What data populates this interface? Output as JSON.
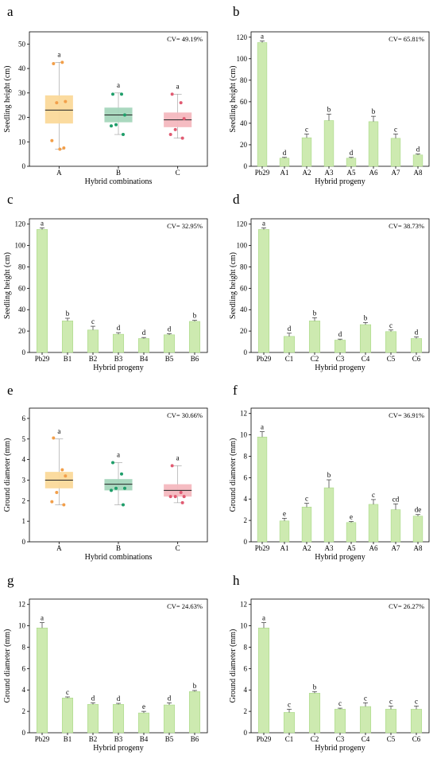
{
  "figure": {
    "colors": {
      "bar_fill": "#cdeab0",
      "bar_stroke": "#a9d886",
      "box_A_fill": "#fbd99a",
      "box_A_point": "#f29f4a",
      "box_B_fill": "#a5d6bc",
      "box_B_point": "#1f9e6a",
      "box_C_fill": "#f4b8bf",
      "box_C_point": "#e15b72",
      "axis": "#000000"
    }
  },
  "chart_data": [
    {
      "panel": "a",
      "type": "box",
      "cv": "CV= 49.19%",
      "xlabel": "Hybrid combinations",
      "ylabel": "Seedling height (cm)",
      "ylim": [
        0,
        55
      ],
      "yticks": [
        0,
        10,
        20,
        30,
        40,
        50
      ],
      "groups": [
        {
          "name": "A",
          "q1": 17.5,
          "median": 23,
          "q3": 29,
          "whisker_low": 7,
          "whisker_high": 42.5,
          "points": [
            42,
            42.5,
            26.5,
            26,
            10.5,
            7.5,
            7
          ],
          "letter": "a",
          "color_key": "A"
        },
        {
          "name": "B",
          "q1": 18,
          "median": 21,
          "q3": 24,
          "whisker_low": 13,
          "whisker_high": 30,
          "points": [
            29.5,
            29.5,
            21,
            17,
            16.5,
            13
          ],
          "letter": "a",
          "color_key": "B"
        },
        {
          "name": "C",
          "q1": 16,
          "median": 19,
          "q3": 22,
          "whisker_low": 11.5,
          "whisker_high": 29.5,
          "points": [
            29.5,
            26,
            19.5,
            15,
            13,
            11.5
          ],
          "letter": "a",
          "color_key": "C"
        }
      ]
    },
    {
      "panel": "b",
      "type": "bar",
      "cv": "CV= 65.81%",
      "xlabel": "Hybrid progeny",
      "ylabel": "Seedling height (cm)",
      "ylim": [
        0,
        125
      ],
      "yticks": [
        0,
        20,
        40,
        60,
        80,
        100,
        120
      ],
      "categories": [
        "Pb29",
        "A1",
        "A2",
        "A3",
        "A5",
        "A6",
        "A7",
        "A8"
      ],
      "values": [
        115,
        7.5,
        26.5,
        42.5,
        7.5,
        41.5,
        26,
        10.5
      ],
      "errors": [
        1.5,
        0.8,
        3.5,
        6,
        0.8,
        5,
        4,
        1
      ],
      "letters": [
        "a",
        "d",
        "c",
        "b",
        "d",
        "b",
        "c",
        "d"
      ]
    },
    {
      "panel": "c",
      "type": "bar",
      "cv": "CV= 32.95%",
      "xlabel": "Hybrid progeny",
      "ylabel": "Seedling height (cm)",
      "ylim": [
        0,
        125
      ],
      "yticks": [
        0,
        20,
        40,
        60,
        80,
        100,
        120
      ],
      "categories": [
        "Pb29",
        "B1",
        "B2",
        "B3",
        "B4",
        "B5",
        "B6"
      ],
      "values": [
        115,
        29.5,
        21,
        17,
        13,
        16.5,
        29
      ],
      "errors": [
        1.5,
        2.5,
        3.5,
        1.5,
        1,
        1,
        1
      ],
      "letters": [
        "a",
        "b",
        "c",
        "d",
        "d",
        "d",
        "b"
      ]
    },
    {
      "panel": "d",
      "type": "bar",
      "cv": "CV= 38.73%",
      "xlabel": "Hybrid progeny",
      "ylabel": "Seedling height (cm)",
      "ylim": [
        0,
        125
      ],
      "yticks": [
        0,
        20,
        40,
        60,
        80,
        100,
        120
      ],
      "categories": [
        "Pb29",
        "C1",
        "C2",
        "C3",
        "C4",
        "C5",
        "C6"
      ],
      "values": [
        115,
        15,
        29.5,
        11.5,
        26,
        19.5,
        13
      ],
      "errors": [
        1.5,
        3,
        3,
        1,
        2,
        1.5,
        1.5
      ],
      "letters": [
        "a",
        "d",
        "b",
        "d",
        "b",
        "c",
        "d"
      ]
    },
    {
      "panel": "e",
      "type": "box",
      "cv": "CV= 30.66%",
      "xlabel": "Hybrid combinations",
      "ylabel": "Ground diameter (mm)",
      "ylim": [
        0,
        6.5
      ],
      "yticks": [
        0,
        1,
        2,
        3,
        4,
        5,
        6
      ],
      "groups": [
        {
          "name": "A",
          "q1": 2.6,
          "median": 3.0,
          "q3": 3.4,
          "whisker_low": 1.8,
          "whisker_high": 5.0,
          "points": [
            5.05,
            3.5,
            3.2,
            2.4,
            1.95,
            1.8
          ],
          "letter": "a",
          "color_key": "A"
        },
        {
          "name": "B",
          "q1": 2.5,
          "median": 2.8,
          "q3": 3.05,
          "whisker_low": 1.8,
          "whisker_high": 3.85,
          "points": [
            3.85,
            3.3,
            2.6,
            2.6,
            2.5,
            1.8
          ],
          "letter": "a",
          "color_key": "B"
        },
        {
          "name": "C",
          "q1": 2.2,
          "median": 2.5,
          "q3": 2.8,
          "whisker_low": 1.9,
          "whisker_high": 3.7,
          "points": [
            3.7,
            2.4,
            2.2,
            2.2,
            2.2,
            1.9
          ],
          "letter": "a",
          "color_key": "C"
        }
      ]
    },
    {
      "panel": "f",
      "type": "bar",
      "cv": "CV= 36.91%",
      "xlabel": "Hybrid progeny",
      "ylabel": "Ground diameter (mm)",
      "ylim": [
        0,
        12.5
      ],
      "yticks": [
        0,
        2,
        4,
        6,
        8,
        10,
        12
      ],
      "categories": [
        "Pb29",
        "A1",
        "A2",
        "A3",
        "A5",
        "A6",
        "A7",
        "A8"
      ],
      "values": [
        9.8,
        1.95,
        3.25,
        5.05,
        1.8,
        3.5,
        3.0,
        2.4
      ],
      "errors": [
        0.5,
        0.25,
        0.35,
        0.75,
        0.1,
        0.45,
        0.55,
        0.15
      ],
      "letters": [
        "a",
        "e",
        "c",
        "b",
        "e",
        "c",
        "cd",
        "de"
      ]
    },
    {
      "panel": "g",
      "type": "bar",
      "cv": "CV= 24.63%",
      "xlabel": "Hybrid progeny",
      "ylabel": "Ground diameter (mm)",
      "ylim": [
        0,
        12.5
      ],
      "yticks": [
        0,
        2,
        4,
        6,
        8,
        10,
        12
      ],
      "categories": [
        "Pb29",
        "B1",
        "B2",
        "B3",
        "B4",
        "B5",
        "B6"
      ],
      "values": [
        9.8,
        3.25,
        2.65,
        2.65,
        1.85,
        2.6,
        3.85
      ],
      "errors": [
        0.5,
        0.1,
        0.15,
        0.1,
        0.15,
        0.2,
        0.1
      ],
      "letters": [
        "a",
        "c",
        "d",
        "d",
        "e",
        "d",
        "b"
      ]
    },
    {
      "panel": "h",
      "type": "bar",
      "cv": "CV= 26.27%",
      "xlabel": "Hybrid progeny",
      "ylabel": "Ground diameter (mm)",
      "ylim": [
        0,
        12.5
      ],
      "yticks": [
        0,
        2,
        4,
        6,
        8,
        10,
        12
      ],
      "categories": [
        "Pb29",
        "C1",
        "C2",
        "C3",
        "C4",
        "C5",
        "C6"
      ],
      "values": [
        9.8,
        1.9,
        3.7,
        2.2,
        2.45,
        2.2,
        2.2
      ],
      "errors": [
        0.5,
        0.3,
        0.15,
        0.1,
        0.35,
        0.3,
        0.3
      ],
      "letters": [
        "a",
        "c",
        "b",
        "c",
        "c",
        "c",
        "c"
      ]
    }
  ]
}
